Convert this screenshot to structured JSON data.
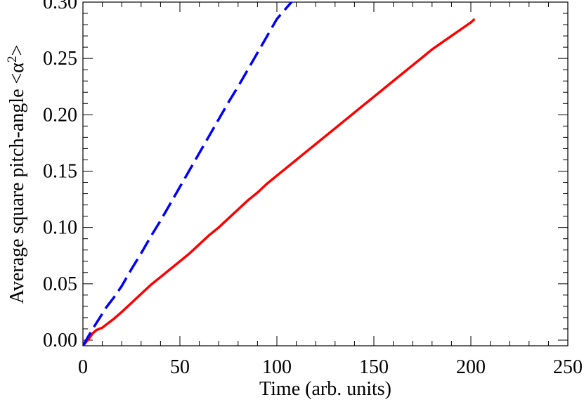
{
  "chart_data": {
    "type": "line",
    "xlabel": "Time (arb. units)",
    "ylabel_main": "Average square pitch-angle <α",
    "ylabel_sup": "2",
    "ylabel_end": ">",
    "xlim": [
      0,
      250
    ],
    "ylim": [
      -0.005,
      0.3
    ],
    "x_ticks": [
      0,
      50,
      100,
      150,
      200,
      250
    ],
    "x_tick_labels": [
      "0",
      "50",
      "100",
      "150",
      "200",
      "250"
    ],
    "y_ticks": [
      0.0,
      0.05,
      0.1,
      0.15,
      0.2,
      0.25,
      0.3
    ],
    "y_tick_labels": [
      "0.00",
      "0.05",
      "0.10",
      "0.15",
      "0.20",
      "0.25",
      "0.30"
    ],
    "series": [
      {
        "color": "#ff0000",
        "style": "solid",
        "x": [
          0,
          3,
          5,
          7,
          10,
          13,
          16,
          20,
          25,
          30,
          35,
          40,
          45,
          50,
          55,
          60,
          65,
          70,
          75,
          80,
          85,
          90,
          95,
          100,
          105,
          110,
          115,
          120,
          125,
          130,
          135,
          140,
          145,
          150,
          155,
          160,
          165,
          170,
          175,
          180,
          185,
          190,
          195,
          200,
          202
        ],
        "y": [
          -0.005,
          0.001,
          0.006,
          0.009,
          0.011,
          0.015,
          0.019,
          0.025,
          0.033,
          0.041,
          0.049,
          0.056,
          0.063,
          0.07,
          0.077,
          0.085,
          0.093,
          0.1,
          0.108,
          0.116,
          0.124,
          0.131,
          0.139,
          0.146,
          0.153,
          0.16,
          0.167,
          0.174,
          0.181,
          0.188,
          0.195,
          0.202,
          0.209,
          0.216,
          0.223,
          0.23,
          0.237,
          0.244,
          0.251,
          0.258,
          0.264,
          0.27,
          0.276,
          0.282,
          0.285
        ]
      },
      {
        "color": "#0000ff",
        "style": "dashed",
        "x": [
          0,
          3,
          5,
          8,
          12,
          16,
          20,
          25,
          30,
          35,
          40,
          45,
          50,
          55,
          60,
          65,
          70,
          75,
          80,
          85,
          90,
          95,
          100,
          105,
          110
        ],
        "y": [
          -0.005,
          0.004,
          0.01,
          0.018,
          0.029,
          0.038,
          0.048,
          0.063,
          0.077,
          0.092,
          0.106,
          0.121,
          0.136,
          0.151,
          0.166,
          0.181,
          0.196,
          0.211,
          0.225,
          0.24,
          0.255,
          0.27,
          0.285,
          0.295,
          0.305
        ]
      }
    ]
  }
}
